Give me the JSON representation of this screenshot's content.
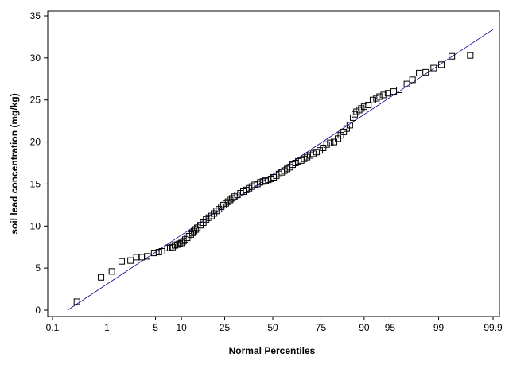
{
  "chart_data": {
    "type": "scatter",
    "xlabel": "Normal Percentiles",
    "ylabel": "soil lead concentration (mg/kg)",
    "x_scale": "normal-probability",
    "x_ticks": [
      {
        "value": 0.1,
        "label": "0.1"
      },
      {
        "value": 1,
        "label": "1"
      },
      {
        "value": 5,
        "label": "5"
      },
      {
        "value": 10,
        "label": "10"
      },
      {
        "value": 25,
        "label": "25"
      },
      {
        "value": 50,
        "label": "50"
      },
      {
        "value": 75,
        "label": "75"
      },
      {
        "value": 90,
        "label": "90"
      },
      {
        "value": 95,
        "label": "95"
      },
      {
        "value": 99,
        "label": "99"
      },
      {
        "value": 99.9,
        "label": "99.9"
      }
    ],
    "y_ticks": [
      0,
      5,
      10,
      15,
      20,
      25,
      30,
      35
    ],
    "ylim": [
      -1,
      35.5
    ],
    "grid": false,
    "legend": "none",
    "marker": "open-square",
    "marker_color": "#000000",
    "reference_line": {
      "color": "#00008b",
      "from": [
        0.2,
        0.0
      ],
      "to": [
        99.9,
        33.4
      ]
    },
    "series": [
      {
        "points": [
          [
            0.3,
            1.0
          ],
          [
            0.8,
            3.9
          ],
          [
            1.2,
            4.6
          ],
          [
            1.7,
            5.8
          ],
          [
            2.3,
            5.9
          ],
          [
            2.8,
            6.3
          ],
          [
            3.3,
            6.3
          ],
          [
            3.9,
            6.4
          ],
          [
            4.8,
            6.8
          ],
          [
            5.5,
            6.9
          ],
          [
            6.0,
            7.0
          ],
          [
            7.0,
            7.4
          ],
          [
            7.5,
            7.4
          ],
          [
            8.0,
            7.5
          ],
          [
            8.5,
            7.7
          ],
          [
            9.0,
            7.8
          ],
          [
            9.5,
            7.9
          ],
          [
            10,
            8.0
          ],
          [
            10.5,
            8.2
          ],
          [
            11,
            8.4
          ],
          [
            11.5,
            8.6
          ],
          [
            12,
            8.8
          ],
          [
            12.5,
            9.0
          ],
          [
            13,
            9.2
          ],
          [
            13.5,
            9.4
          ],
          [
            14,
            9.6
          ],
          [
            14.5,
            9.8
          ],
          [
            15.5,
            10.1
          ],
          [
            16.5,
            10.4
          ],
          [
            17.5,
            10.8
          ],
          [
            18.5,
            11.0
          ],
          [
            19.5,
            11.2
          ],
          [
            20.5,
            11.5
          ],
          [
            21.5,
            11.8
          ],
          [
            22.5,
            12.0
          ],
          [
            23.5,
            12.3
          ],
          [
            24.5,
            12.5
          ],
          [
            25.5,
            12.7
          ],
          [
            26.5,
            12.9
          ],
          [
            27.5,
            13.1
          ],
          [
            28.5,
            13.3
          ],
          [
            29.5,
            13.5
          ],
          [
            31,
            13.7
          ],
          [
            32.5,
            13.9
          ],
          [
            34,
            14.1
          ],
          [
            35.5,
            14.3
          ],
          [
            37,
            14.5
          ],
          [
            38.5,
            14.7
          ],
          [
            40,
            14.9
          ],
          [
            41.5,
            15.0
          ],
          [
            43,
            15.2
          ],
          [
            44.5,
            15.3
          ],
          [
            46,
            15.4
          ],
          [
            47.5,
            15.5
          ],
          [
            49,
            15.6
          ],
          [
            50.5,
            15.8
          ],
          [
            52,
            16.0
          ],
          [
            53.5,
            16.2
          ],
          [
            55,
            16.4
          ],
          [
            56.5,
            16.6
          ],
          [
            58,
            16.8
          ],
          [
            59.5,
            17.0
          ],
          [
            61,
            17.3
          ],
          [
            62.5,
            17.5
          ],
          [
            64,
            17.7
          ],
          [
            65.5,
            17.8
          ],
          [
            67,
            18.0
          ],
          [
            68.5,
            18.2
          ],
          [
            70,
            18.4
          ],
          [
            71.5,
            18.6
          ],
          [
            73,
            18.8
          ],
          [
            74.5,
            19.0
          ],
          [
            76,
            19.3
          ],
          [
            77.5,
            19.7
          ],
          [
            79,
            19.9
          ],
          [
            80.5,
            20.0
          ],
          [
            82,
            20.4
          ],
          [
            83,
            20.8
          ],
          [
            84,
            21.2
          ],
          [
            85,
            21.6
          ],
          [
            86,
            22.0
          ],
          [
            87,
            22.9
          ],
          [
            87.5,
            23.3
          ],
          [
            88,
            23.6
          ],
          [
            88.7,
            23.8
          ],
          [
            89.3,
            24.0
          ],
          [
            90,
            24.2
          ],
          [
            91,
            24.4
          ],
          [
            92,
            25.0
          ],
          [
            92.7,
            25.2
          ],
          [
            93.3,
            25.4
          ],
          [
            94,
            25.6
          ],
          [
            94.7,
            25.8
          ],
          [
            95.5,
            26.0
          ],
          [
            96.2,
            26.2
          ],
          [
            97,
            26.9
          ],
          [
            97.5,
            27.4
          ],
          [
            98,
            28.2
          ],
          [
            98.4,
            28.3
          ],
          [
            98.8,
            28.8
          ],
          [
            99.1,
            29.2
          ],
          [
            99.4,
            30.2
          ],
          [
            99.72,
            30.3
          ]
        ]
      }
    ]
  }
}
